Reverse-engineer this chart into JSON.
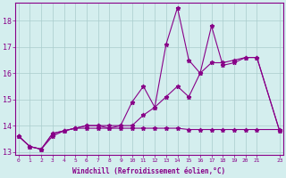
{
  "xlabel": "Windchill (Refroidissement éolien,°C)",
  "background_color": "#d4eeee",
  "line_color": "#880088",
  "grid_color": "#aacccc",
  "x_hours": [
    0,
    1,
    2,
    3,
    4,
    5,
    6,
    7,
    8,
    9,
    10,
    11,
    12,
    13,
    14,
    15,
    16,
    17,
    18,
    19,
    20,
    21,
    23
  ],
  "y_spiky": [
    13.6,
    13.2,
    13.1,
    13.7,
    13.8,
    13.9,
    14.0,
    14.0,
    14.0,
    14.0,
    14.9,
    15.5,
    14.7,
    17.1,
    18.5,
    16.5,
    16.0,
    17.8,
    16.3,
    16.4,
    16.6,
    16.6,
    13.8
  ],
  "y_smooth": [
    13.6,
    13.2,
    13.1,
    13.6,
    13.8,
    13.9,
    14.0,
    14.0,
    13.9,
    14.0,
    14.0,
    14.4,
    14.7,
    15.1,
    15.5,
    15.1,
    16.0,
    16.4,
    16.4,
    16.5,
    16.6,
    16.6,
    13.8
  ],
  "y_flat": [
    13.6,
    13.2,
    13.1,
    13.7,
    13.8,
    13.9,
    13.9,
    13.9,
    13.9,
    13.9,
    13.9,
    13.9,
    13.9,
    13.9,
    13.9,
    13.85,
    13.85,
    13.85,
    13.85,
    13.85,
    13.85,
    13.85,
    13.85
  ],
  "xlim": [
    -0.3,
    23.3
  ],
  "ylim": [
    12.9,
    18.7
  ],
  "yticks": [
    13,
    14,
    15,
    16,
    17,
    18
  ],
  "xticks": [
    0,
    1,
    2,
    3,
    4,
    5,
    6,
    7,
    8,
    9,
    10,
    11,
    12,
    13,
    14,
    15,
    16,
    17,
    18,
    19,
    20,
    21,
    23
  ],
  "xtick_labels": [
    "0",
    "1",
    "2",
    "3",
    "4",
    "5",
    "6",
    "7",
    "8",
    "9",
    "10",
    "11",
    "12",
    "13",
    "14",
    "15",
    "16",
    "17",
    "18",
    "19",
    "20",
    "21",
    "23"
  ],
  "font_color": "#880088",
  "marker": "*",
  "marker_size": 3.5,
  "linewidth": 0.8
}
